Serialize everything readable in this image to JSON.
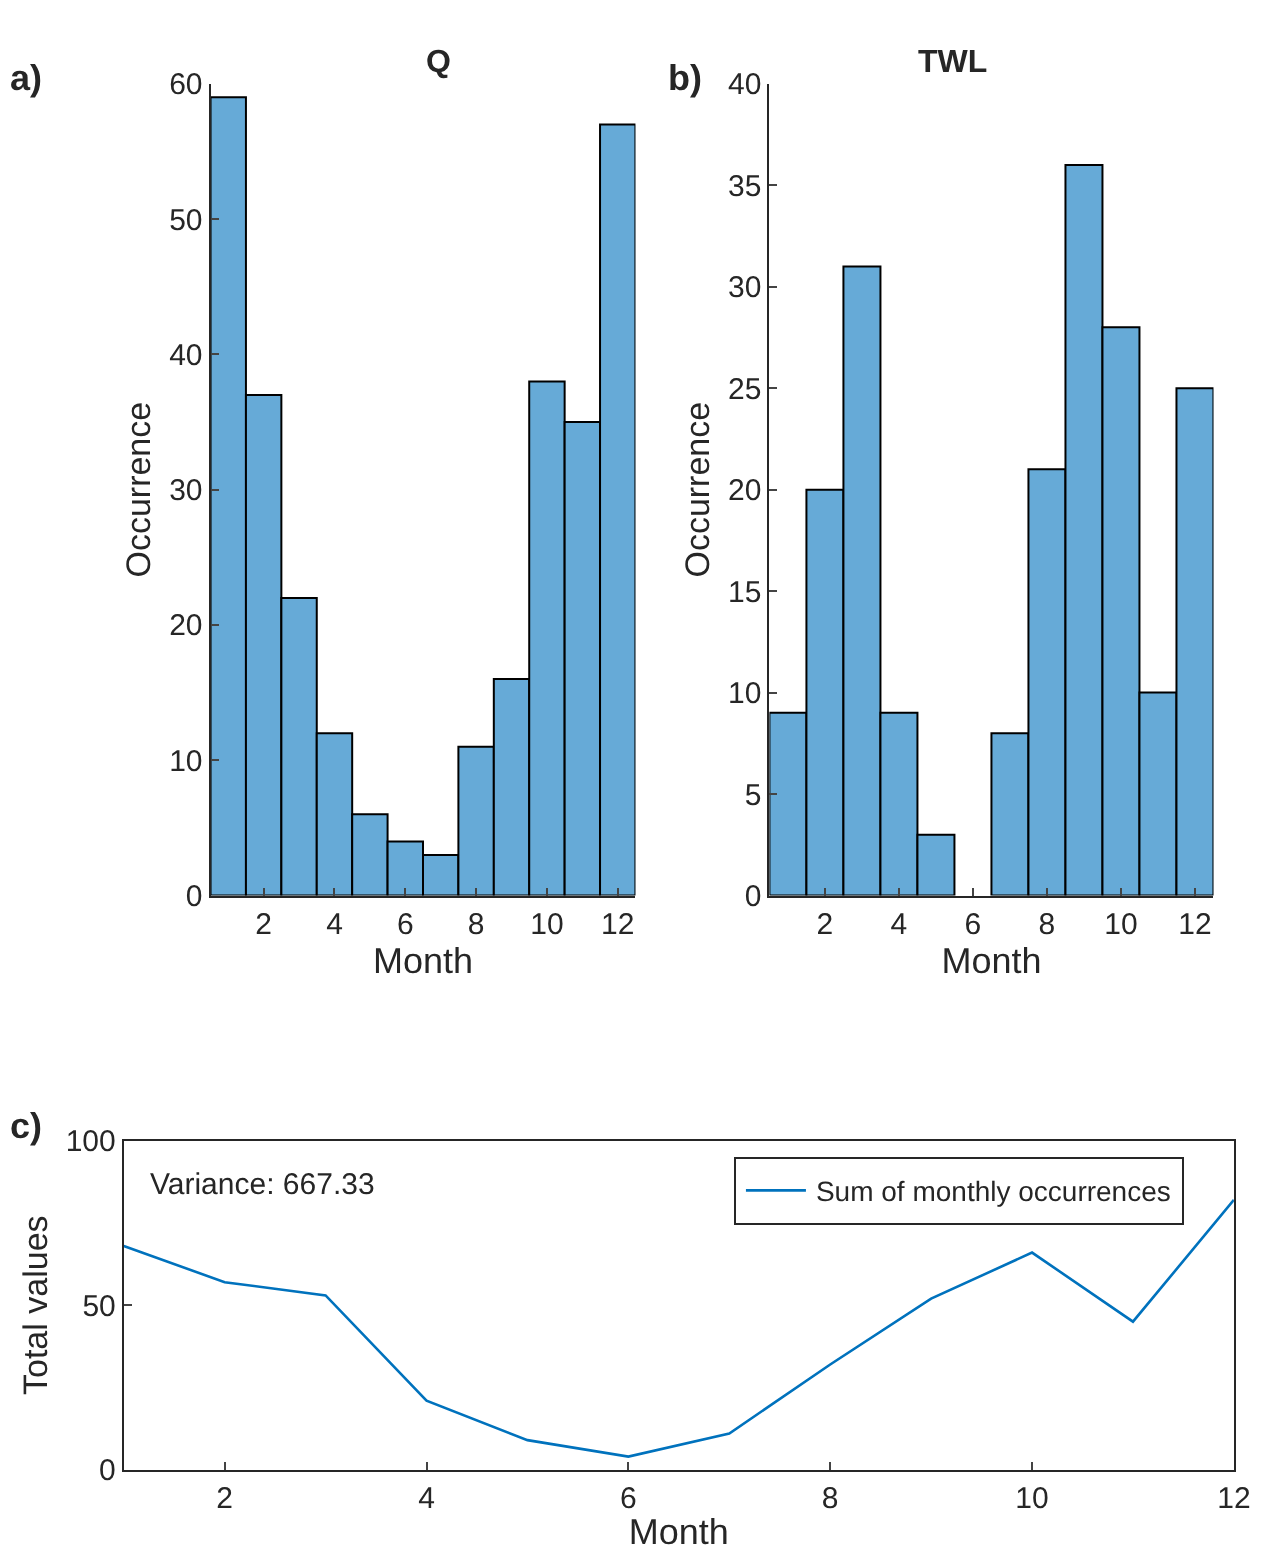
{
  "chart_data": [
    {
      "type": "histogram",
      "title": "Q",
      "xlabel": "Month",
      "ylabel": "Occurrence",
      "annotations": [
        "a)"
      ],
      "bins": [
        0.5,
        1.5,
        2.5,
        3.5,
        4.5,
        5.5,
        6.5,
        7.5,
        8.5,
        9.5,
        10.5,
        11.5,
        12.5
      ],
      "values": [
        59,
        37,
        22,
        12,
        6,
        4,
        3,
        11,
        16,
        38,
        35,
        57
      ],
      "color": "#66aad7",
      "xlim": [
        0.5,
        12.5
      ],
      "xticks": [
        2,
        4,
        6,
        8,
        10,
        12
      ],
      "ylim": [
        0,
        60
      ],
      "yticks": [
        0,
        10,
        20,
        30,
        40,
        50,
        60
      ]
    },
    {
      "type": "histogram",
      "title": "TWL",
      "xlabel": "Month",
      "ylabel": "Occurrence",
      "annotations": [
        "b)"
      ],
      "bins": [
        0.5,
        1.5,
        2.5,
        3.5,
        4.5,
        5.5,
        6.5,
        7.5,
        8.5,
        9.5,
        10.5,
        11.5,
        12.5
      ],
      "values": [
        9,
        20,
        31,
        9,
        3,
        0,
        8,
        21,
        36,
        28,
        10,
        25
      ],
      "color": "#66aad7",
      "xlim": [
        0.5,
        12.5
      ],
      "xticks": [
        2,
        4,
        6,
        8,
        10,
        12
      ],
      "ylim": [
        0,
        40
      ],
      "yticks": [
        0,
        5,
        10,
        15,
        20,
        25,
        30,
        35,
        40
      ]
    },
    {
      "type": "line",
      "xlabel": "Month",
      "ylabel": "Total values",
      "annotations": [
        "c)",
        "Variance: 667.33"
      ],
      "x": [
        1,
        2,
        3,
        4,
        5,
        6,
        7,
        8,
        9,
        10,
        11,
        12
      ],
      "series": [
        {
          "name": "Sum of monthly occurrences",
          "color": "#0072bd",
          "values": [
            68,
            57,
            53,
            21,
            9,
            4,
            11,
            32,
            52,
            66,
            45,
            82
          ]
        }
      ],
      "xlim": [
        1,
        12
      ],
      "xticks": [
        2,
        4,
        6,
        8,
        10,
        12
      ],
      "ylim": [
        0,
        100
      ],
      "yticks": [
        0,
        50,
        100
      ],
      "legend": "top right",
      "marker": "none",
      "line_style": "solid"
    }
  ]
}
